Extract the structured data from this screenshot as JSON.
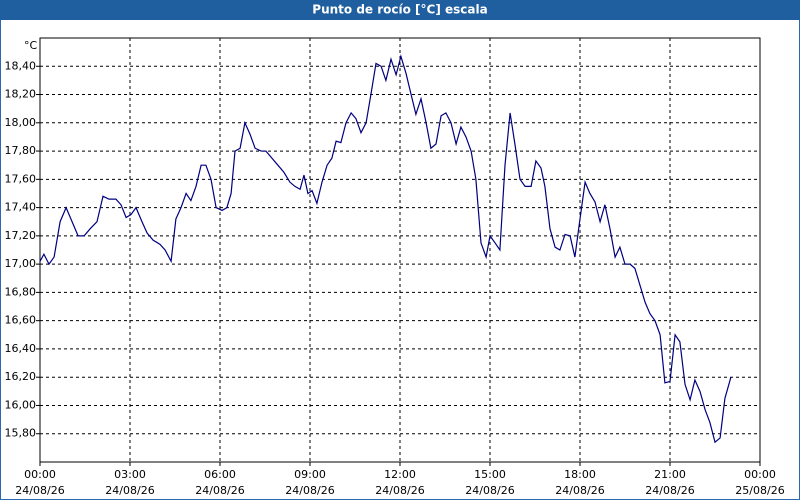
{
  "chart_data": {
    "type": "line",
    "title": "Punto de rocío [°C] escala",
    "y_unit": "°C",
    "xlim": [
      0,
      24
    ],
    "ylim": [
      15.6,
      18.6
    ],
    "grid": true,
    "xticks": [
      {
        "value": 0,
        "label": "00:00",
        "date": "24/08/26"
      },
      {
        "value": 3,
        "label": "03:00",
        "date": "24/08/26"
      },
      {
        "value": 6,
        "label": "06:00",
        "date": "24/08/26"
      },
      {
        "value": 9,
        "label": "09:00",
        "date": "24/08/26"
      },
      {
        "value": 12,
        "label": "12:00",
        "date": "24/08/26"
      },
      {
        "value": 15,
        "label": "15:00",
        "date": "24/08/26"
      },
      {
        "value": 18,
        "label": "18:00",
        "date": "24/08/26"
      },
      {
        "value": 21,
        "label": "21:00",
        "date": "24/08/26"
      },
      {
        "value": 24,
        "label": "00:00",
        "date": "25/08/26"
      }
    ],
    "yticks": [
      {
        "value": 15.8,
        "label": "15,80"
      },
      {
        "value": 16.0,
        "label": "16,00"
      },
      {
        "value": 16.2,
        "label": "16,20"
      },
      {
        "value": 16.4,
        "label": "16,40"
      },
      {
        "value": 16.6,
        "label": "16,60"
      },
      {
        "value": 16.8,
        "label": "16,80"
      },
      {
        "value": 17.0,
        "label": "17,00"
      },
      {
        "value": 17.2,
        "label": "17,20"
      },
      {
        "value": 17.4,
        "label": "17,40"
      },
      {
        "value": 17.6,
        "label": "17,60"
      },
      {
        "value": 17.8,
        "label": "17,80"
      },
      {
        "value": 18.0,
        "label": "18,00"
      },
      {
        "value": 18.2,
        "label": "18,20"
      },
      {
        "value": 18.4,
        "label": "18,40"
      }
    ],
    "x": [
      0,
      0.13,
      0.3,
      0.47,
      0.67,
      0.87,
      1.07,
      1.27,
      1.47,
      1.67,
      1.9,
      2.1,
      2.3,
      2.53,
      2.7,
      2.87,
      3.03,
      3.2,
      3.4,
      3.57,
      3.77,
      4,
      4.17,
      4.37,
      4.53,
      4.7,
      4.87,
      5.03,
      5.2,
      5.37,
      5.53,
      5.7,
      5.87,
      6.07,
      6.23,
      6.37,
      6.5,
      6.67,
      6.83,
      7,
      7.17,
      7.37,
      7.53,
      7.73,
      7.93,
      8.13,
      8.33,
      8.5,
      8.67,
      8.8,
      8.93,
      9.07,
      9.23,
      9.4,
      9.57,
      9.73,
      9.87,
      10.03,
      10.2,
      10.37,
      10.53,
      10.7,
      10.87,
      11.03,
      11.2,
      11.37,
      11.53,
      11.7,
      11.87,
      12.03,
      12.2,
      12.37,
      12.53,
      12.7,
      12.87,
      13.03,
      13.2,
      13.37,
      13.53,
      13.7,
      13.87,
      14.03,
      14.2,
      14.37,
      14.53,
      14.7,
      14.87,
      15,
      15.17,
      15.33,
      15.5,
      15.67,
      15.83,
      16,
      16.17,
      16.37,
      16.53,
      16.7,
      16.83,
      17,
      17.17,
      17.33,
      17.5,
      17.67,
      17.83,
      18,
      18.17,
      18.33,
      18.5,
      18.67,
      18.83,
      19,
      19.17,
      19.33,
      19.5,
      19.67,
      19.83,
      20,
      20.17,
      20.33,
      20.5,
      20.67,
      20.83,
      21,
      21.17,
      21.33,
      21.5,
      21.67,
      21.83,
      22,
      22.17,
      22.33,
      22.5,
      22.67,
      22.83,
      23.03
    ],
    "series": [
      {
        "name": "Punto de rocío",
        "color": "#000080",
        "values": [
          17.02,
          17.07,
          17.0,
          17.05,
          17.3,
          17.4,
          17.3,
          17.2,
          17.2,
          17.25,
          17.3,
          17.48,
          17.46,
          17.46,
          17.42,
          17.33,
          17.35,
          17.4,
          17.3,
          17.22,
          17.17,
          17.14,
          17.1,
          17.02,
          17.32,
          17.4,
          17.5,
          17.45,
          17.55,
          17.7,
          17.7,
          17.6,
          17.4,
          17.38,
          17.4,
          17.5,
          17.8,
          17.82,
          18.0,
          17.92,
          17.82,
          17.8,
          17.8,
          17.75,
          17.7,
          17.65,
          17.58,
          17.55,
          17.53,
          17.63,
          17.5,
          17.52,
          17.43,
          17.58,
          17.7,
          17.75,
          17.87,
          17.86,
          18.0,
          18.07,
          18.03,
          17.93,
          18.0,
          18.2,
          18.42,
          18.4,
          18.3,
          18.45,
          18.34,
          18.47,
          18.35,
          18.2,
          18.06,
          18.17,
          18.0,
          17.82,
          17.85,
          18.05,
          18.07,
          18.0,
          17.85,
          17.97,
          17.9,
          17.8,
          17.6,
          17.15,
          17.05,
          17.2,
          17.15,
          17.1,
          17.7,
          18.07,
          17.85,
          17.6,
          17.55,
          17.55,
          17.73,
          17.68,
          17.55,
          17.25,
          17.12,
          17.1,
          17.21,
          17.2,
          17.05,
          17.32,
          17.58,
          17.5,
          17.44,
          17.3,
          17.42,
          17.25,
          17.05,
          17.12,
          17.0,
          17.0,
          16.97,
          16.85,
          16.73,
          16.65,
          16.6,
          16.5,
          16.16,
          16.17,
          16.5,
          16.45,
          16.15,
          16.04,
          16.18,
          16.1,
          15.97,
          15.88,
          15.74,
          15.77,
          16.05,
          16.2
        ]
      }
    ]
  }
}
